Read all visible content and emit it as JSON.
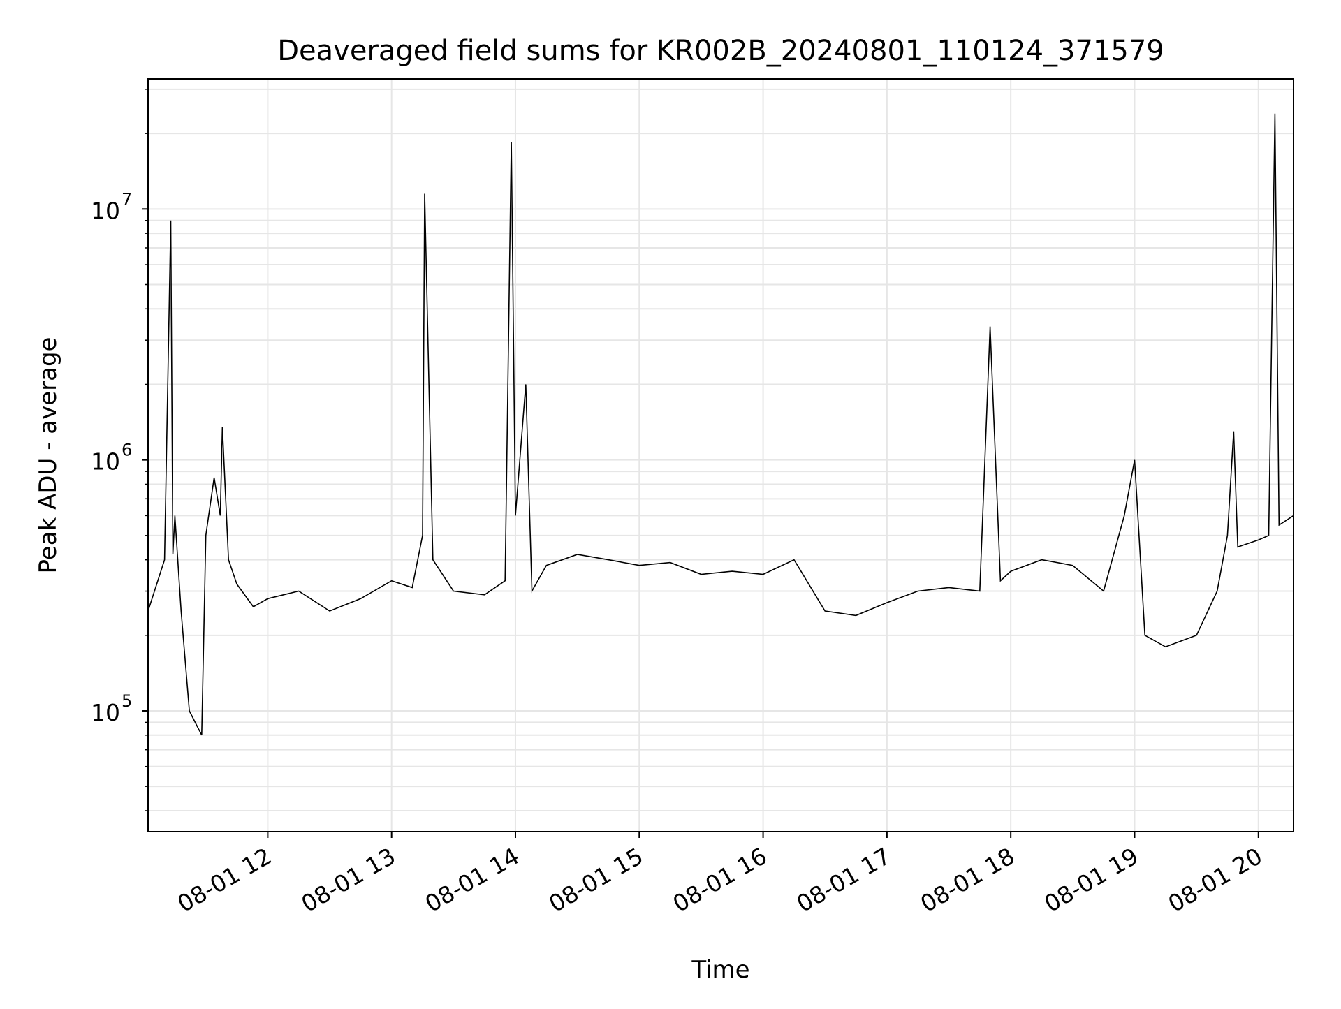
{
  "chart_data": {
    "type": "line",
    "title": "Deaveraged field sums for KR002B_20240801_110124_371579",
    "xlabel": "Time",
    "ylabel": "Peak ADU - average",
    "yscale": "log",
    "ylim": [
      33000,
      33000000
    ],
    "xlim": [
      "08-01 11:02",
      "08-01 20:17"
    ],
    "grid": true,
    "line_color": "#000000",
    "x_ticks": [
      {
        "label": "08-01 12",
        "value": 1.0
      },
      {
        "label": "08-01 13",
        "value": 2.0
      },
      {
        "label": "08-01 14",
        "value": 3.0
      },
      {
        "label": "08-01 15",
        "value": 4.0
      },
      {
        "label": "08-01 16",
        "value": 5.0
      },
      {
        "label": "08-01 17",
        "value": 6.0
      },
      {
        "label": "08-01 18",
        "value": 7.0
      },
      {
        "label": "08-01 19",
        "value": 8.0
      },
      {
        "label": "08-01 20",
        "value": 9.0
      }
    ],
    "y_ticks": [
      {
        "base": "10",
        "exp": "5",
        "value": 100000
      },
      {
        "base": "10",
        "exp": "6",
        "value": 1000000
      },
      {
        "base": "10",
        "exp": "7",
        "value": 10000000
      }
    ],
    "series": [
      {
        "name": "",
        "x": [
          "08-01 11:02",
          "08-01 11:10",
          "08-01 11:13",
          "08-01 11:14",
          "08-01 11:15",
          "08-01 11:18",
          "08-01 11:22",
          "08-01 11:28",
          "08-01 11:30",
          "08-01 11:34",
          "08-01 11:37",
          "08-01 11:38",
          "08-01 11:41",
          "08-01 11:45",
          "08-01 11:53",
          "08-01 12:00",
          "08-01 12:15",
          "08-01 12:30",
          "08-01 12:45",
          "08-01 13:00",
          "08-01 13:10",
          "08-01 13:15",
          "08-01 13:16",
          "08-01 13:20",
          "08-01 13:30",
          "08-01 13:45",
          "08-01 13:55",
          "08-01 13:58",
          "08-01 14:00",
          "08-01 14:05",
          "08-01 14:08",
          "08-01 14:15",
          "08-01 14:30",
          "08-01 14:45",
          "08-01 15:00",
          "08-01 15:15",
          "08-01 15:30",
          "08-01 15:45",
          "08-01 16:00",
          "08-01 16:15",
          "08-01 16:30",
          "08-01 16:45",
          "08-01 17:00",
          "08-01 17:15",
          "08-01 17:30",
          "08-01 17:45",
          "08-01 17:50",
          "08-01 17:55",
          "08-01 18:00",
          "08-01 18:15",
          "08-01 18:30",
          "08-01 18:45",
          "08-01 18:55",
          "08-01 19:00",
          "08-01 19:05",
          "08-01 19:15",
          "08-01 19:30",
          "08-01 19:40",
          "08-01 19:45",
          "08-01 19:48",
          "08-01 19:50",
          "08-01 20:00",
          "08-01 20:05",
          "08-01 20:08",
          "08-01 20:10",
          "08-01 20:17"
        ],
        "values": [
          250000,
          400000,
          9000000,
          420000,
          600000,
          250000,
          100000,
          80000,
          500000,
          850000,
          600000,
          1350000,
          400000,
          320000,
          260000,
          280000,
          300000,
          250000,
          280000,
          330000,
          310000,
          500000,
          11500000,
          400000,
          300000,
          290000,
          330000,
          18500000,
          600000,
          2000000,
          300000,
          380000,
          420000,
          400000,
          380000,
          390000,
          350000,
          360000,
          350000,
          400000,
          250000,
          240000,
          270000,
          300000,
          310000,
          300000,
          3400000,
          330000,
          360000,
          400000,
          380000,
          300000,
          600000,
          1000000,
          200000,
          180000,
          200000,
          300000,
          500000,
          1300000,
          450000,
          480000,
          500000,
          24000000,
          550000,
          600000
        ]
      }
    ]
  }
}
